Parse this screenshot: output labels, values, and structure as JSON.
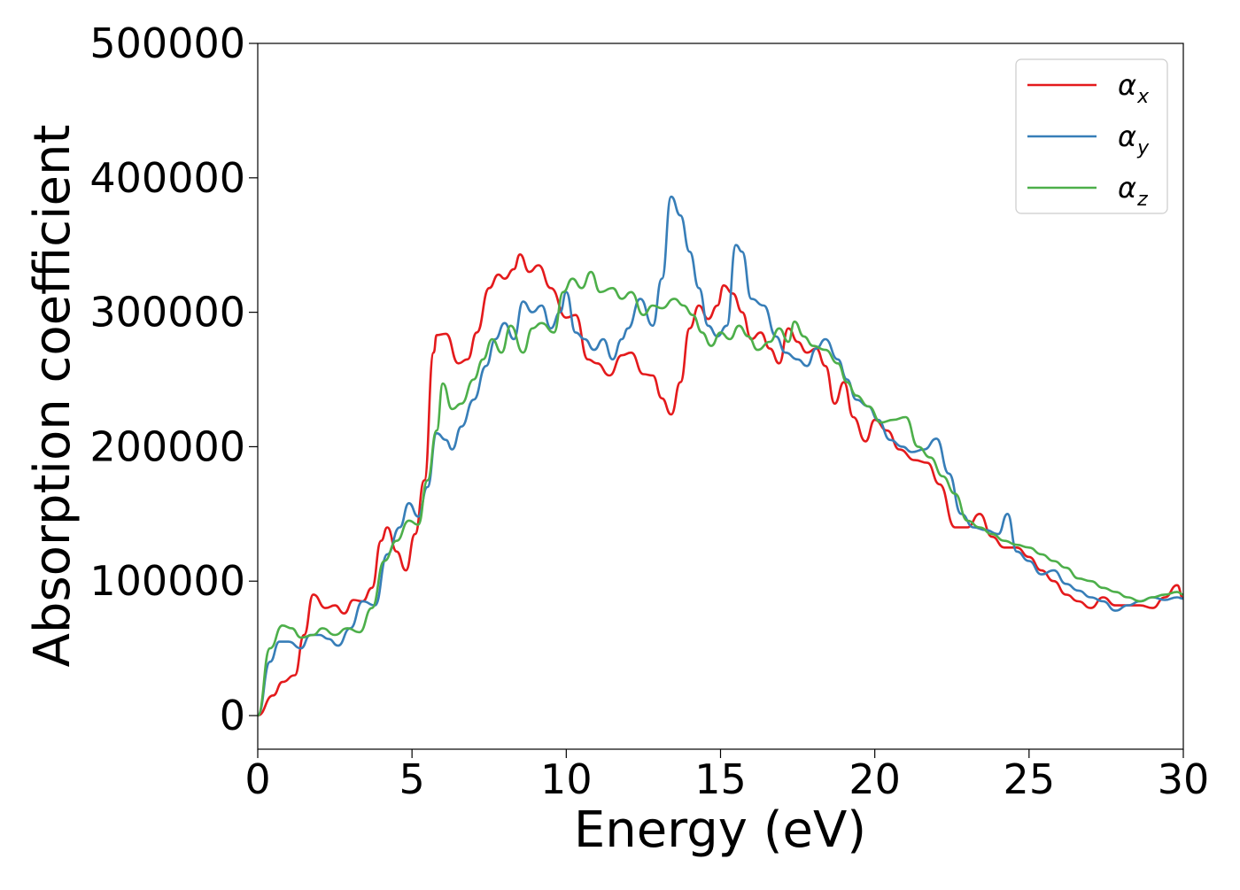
{
  "chart_data": {
    "type": "line",
    "title": "",
    "xlabel": "Energy (eV)",
    "ylabel": "Absorption coefficient",
    "xlim": [
      0,
      30
    ],
    "ylim": [
      -25000,
      500000
    ],
    "xticks": [
      "0",
      "5",
      "10",
      "15",
      "20",
      "25",
      "30"
    ],
    "yticks": [
      "0",
      "100000",
      "200000",
      "300000",
      "400000",
      "500000"
    ],
    "grid": false,
    "legend_position": "top-right",
    "series": [
      {
        "name": "α",
        "subscript": "x",
        "color": "#e41a1c",
        "points": [
          [
            0,
            0
          ],
          [
            0.5,
            15000
          ],
          [
            0.8,
            25000
          ],
          [
            1.2,
            30000
          ],
          [
            1.5,
            60000
          ],
          [
            1.8,
            90000
          ],
          [
            2.2,
            80000
          ],
          [
            2.5,
            82000
          ],
          [
            2.8,
            76000
          ],
          [
            3.1,
            86000
          ],
          [
            3.4,
            85000
          ],
          [
            3.7,
            95000
          ],
          [
            4.0,
            130000
          ],
          [
            4.2,
            140000
          ],
          [
            4.5,
            122000
          ],
          [
            4.8,
            108000
          ],
          [
            5.1,
            135000
          ],
          [
            5.4,
            175000
          ],
          [
            5.7,
            270000
          ],
          [
            5.8,
            283000
          ],
          [
            6.1,
            284000
          ],
          [
            6.5,
            262000
          ],
          [
            6.8,
            265000
          ],
          [
            7.1,
            285000
          ],
          [
            7.5,
            318000
          ],
          [
            7.8,
            328000
          ],
          [
            8.0,
            325000
          ],
          [
            8.3,
            332000
          ],
          [
            8.5,
            343000
          ],
          [
            8.8,
            330000
          ],
          [
            9.1,
            335000
          ],
          [
            9.5,
            318000
          ],
          [
            10.0,
            296000
          ],
          [
            10.3,
            298000
          ],
          [
            10.7,
            265000
          ],
          [
            11.0,
            262000
          ],
          [
            11.4,
            253000
          ],
          [
            11.8,
            268000
          ],
          [
            12.1,
            270000
          ],
          [
            12.5,
            254000
          ],
          [
            12.8,
            253000
          ],
          [
            13.1,
            236000
          ],
          [
            13.4,
            224000
          ],
          [
            13.7,
            248000
          ],
          [
            14.0,
            288000
          ],
          [
            14.3,
            305000
          ],
          [
            14.6,
            295000
          ],
          [
            14.9,
            305000
          ],
          [
            15.1,
            320000
          ],
          [
            15.4,
            314000
          ],
          [
            15.7,
            300000
          ],
          [
            16.0,
            280000
          ],
          [
            16.3,
            285000
          ],
          [
            16.6,
            273000
          ],
          [
            16.9,
            262000
          ],
          [
            17.2,
            288000
          ],
          [
            17.5,
            278000
          ],
          [
            17.8,
            270000
          ],
          [
            18.1,
            273000
          ],
          [
            18.4,
            260000
          ],
          [
            18.7,
            232000
          ],
          [
            19.0,
            248000
          ],
          [
            19.3,
            222000
          ],
          [
            19.7,
            204000
          ],
          [
            20.0,
            220000
          ],
          [
            20.4,
            212000
          ],
          [
            20.8,
            198000
          ],
          [
            21.3,
            190000
          ],
          [
            21.7,
            188000
          ],
          [
            22.1,
            172000
          ],
          [
            22.6,
            140000
          ],
          [
            23.0,
            140000
          ],
          [
            23.4,
            150000
          ],
          [
            23.8,
            133000
          ],
          [
            24.2,
            125000
          ],
          [
            24.6,
            125000
          ],
          [
            25.0,
            118000
          ],
          [
            25.4,
            108000
          ],
          [
            25.8,
            100000
          ],
          [
            26.2,
            90000
          ],
          [
            26.6,
            85000
          ],
          [
            27.0,
            80000
          ],
          [
            27.4,
            88000
          ],
          [
            27.8,
            82000
          ],
          [
            28.2,
            82000
          ],
          [
            28.6,
            82000
          ],
          [
            29.0,
            80000
          ],
          [
            29.4,
            88000
          ],
          [
            29.8,
            97000
          ],
          [
            30.0,
            87000
          ]
        ]
      },
      {
        "name": "α",
        "subscript": "y",
        "color": "#377eb8",
        "points": [
          [
            0,
            0
          ],
          [
            0.4,
            40000
          ],
          [
            0.7,
            55000
          ],
          [
            1.0,
            55000
          ],
          [
            1.4,
            50000
          ],
          [
            1.7,
            60000
          ],
          [
            2.0,
            60000
          ],
          [
            2.3,
            57000
          ],
          [
            2.6,
            52000
          ],
          [
            3.0,
            65000
          ],
          [
            3.4,
            85000
          ],
          [
            3.8,
            82000
          ],
          [
            4.2,
            120000
          ],
          [
            4.6,
            140000
          ],
          [
            4.9,
            158000
          ],
          [
            5.2,
            148000
          ],
          [
            5.5,
            170000
          ],
          [
            5.8,
            210000
          ],
          [
            6.1,
            205000
          ],
          [
            6.3,
            198000
          ],
          [
            6.6,
            215000
          ],
          [
            7.0,
            235000
          ],
          [
            7.4,
            260000
          ],
          [
            7.7,
            280000
          ],
          [
            8.0,
            292000
          ],
          [
            8.3,
            280000
          ],
          [
            8.6,
            308000
          ],
          [
            8.9,
            300000
          ],
          [
            9.2,
            305000
          ],
          [
            9.5,
            288000
          ],
          [
            9.8,
            300000
          ],
          [
            10.0,
            315000
          ],
          [
            10.3,
            285000
          ],
          [
            10.6,
            280000
          ],
          [
            10.9,
            272000
          ],
          [
            11.2,
            280000
          ],
          [
            11.5,
            265000
          ],
          [
            11.8,
            280000
          ],
          [
            12.0,
            288000
          ],
          [
            12.4,
            310000
          ],
          [
            12.8,
            290000
          ],
          [
            13.1,
            325000
          ],
          [
            13.4,
            386000
          ],
          [
            13.7,
            372000
          ],
          [
            14.0,
            345000
          ],
          [
            14.3,
            318000
          ],
          [
            14.6,
            290000
          ],
          [
            14.9,
            282000
          ],
          [
            15.2,
            290000
          ],
          [
            15.5,
            350000
          ],
          [
            15.7,
            345000
          ],
          [
            16.0,
            310000
          ],
          [
            16.4,
            305000
          ],
          [
            16.8,
            282000
          ],
          [
            17.1,
            270000
          ],
          [
            17.5,
            265000
          ],
          [
            17.8,
            260000
          ],
          [
            18.1,
            273000
          ],
          [
            18.4,
            280000
          ],
          [
            18.8,
            265000
          ],
          [
            19.1,
            250000
          ],
          [
            19.4,
            235000
          ],
          [
            19.8,
            230000
          ],
          [
            20.1,
            220000
          ],
          [
            20.5,
            205000
          ],
          [
            20.9,
            200000
          ],
          [
            21.2,
            196000
          ],
          [
            21.6,
            198000
          ],
          [
            22.0,
            206000
          ],
          [
            22.4,
            180000
          ],
          [
            22.8,
            150000
          ],
          [
            23.2,
            140000
          ],
          [
            23.6,
            138000
          ],
          [
            24.0,
            135000
          ],
          [
            24.3,
            150000
          ],
          [
            24.6,
            122000
          ],
          [
            25.0,
            115000
          ],
          [
            25.4,
            105000
          ],
          [
            25.8,
            108000
          ],
          [
            26.2,
            98000
          ],
          [
            26.6,
            93000
          ],
          [
            27.0,
            88000
          ],
          [
            27.4,
            85000
          ],
          [
            27.8,
            78000
          ],
          [
            28.2,
            82000
          ],
          [
            28.6,
            85000
          ],
          [
            29.0,
            88000
          ],
          [
            29.4,
            86000
          ],
          [
            29.8,
            88000
          ],
          [
            30.0,
            87000
          ]
        ]
      },
      {
        "name": "α",
        "subscript": "z",
        "color": "#4daf4a",
        "points": [
          [
            0,
            0
          ],
          [
            0.4,
            50000
          ],
          [
            0.8,
            67000
          ],
          [
            1.1,
            65000
          ],
          [
            1.4,
            58000
          ],
          [
            1.8,
            60000
          ],
          [
            2.1,
            65000
          ],
          [
            2.5,
            60000
          ],
          [
            2.9,
            65000
          ],
          [
            3.3,
            62000
          ],
          [
            3.7,
            80000
          ],
          [
            4.1,
            115000
          ],
          [
            4.5,
            130000
          ],
          [
            4.9,
            145000
          ],
          [
            5.2,
            142000
          ],
          [
            5.5,
            175000
          ],
          [
            5.8,
            212000
          ],
          [
            6.0,
            247000
          ],
          [
            6.3,
            228000
          ],
          [
            6.6,
            232000
          ],
          [
            7.0,
            250000
          ],
          [
            7.3,
            265000
          ],
          [
            7.6,
            280000
          ],
          [
            7.9,
            270000
          ],
          [
            8.2,
            290000
          ],
          [
            8.6,
            270000
          ],
          [
            8.9,
            288000
          ],
          [
            9.2,
            292000
          ],
          [
            9.6,
            285000
          ],
          [
            9.9,
            315000
          ],
          [
            10.2,
            325000
          ],
          [
            10.5,
            318000
          ],
          [
            10.8,
            330000
          ],
          [
            11.1,
            315000
          ],
          [
            11.5,
            318000
          ],
          [
            11.8,
            310000
          ],
          [
            12.1,
            315000
          ],
          [
            12.5,
            298000
          ],
          [
            12.8,
            305000
          ],
          [
            13.1,
            303000
          ],
          [
            13.5,
            310000
          ],
          [
            13.8,
            305000
          ],
          [
            14.1,
            298000
          ],
          [
            14.4,
            285000
          ],
          [
            14.7,
            275000
          ],
          [
            15.0,
            285000
          ],
          [
            15.3,
            280000
          ],
          [
            15.6,
            290000
          ],
          [
            15.9,
            282000
          ],
          [
            16.2,
            272000
          ],
          [
            16.6,
            278000
          ],
          [
            16.9,
            288000
          ],
          [
            17.2,
            278000
          ],
          [
            17.4,
            293000
          ],
          [
            17.7,
            282000
          ],
          [
            18.0,
            275000
          ],
          [
            18.4,
            272000
          ],
          [
            18.8,
            262000
          ],
          [
            19.1,
            248000
          ],
          [
            19.4,
            238000
          ],
          [
            19.8,
            230000
          ],
          [
            20.2,
            218000
          ],
          [
            20.6,
            220000
          ],
          [
            21.0,
            222000
          ],
          [
            21.4,
            200000
          ],
          [
            21.8,
            192000
          ],
          [
            22.2,
            178000
          ],
          [
            22.6,
            165000
          ],
          [
            23.0,
            145000
          ],
          [
            23.4,
            140000
          ],
          [
            23.8,
            135000
          ],
          [
            24.2,
            130000
          ],
          [
            24.6,
            127000
          ],
          [
            25.0,
            125000
          ],
          [
            25.4,
            120000
          ],
          [
            25.8,
            115000
          ],
          [
            26.2,
            110000
          ],
          [
            26.6,
            102000
          ],
          [
            27.0,
            100000
          ],
          [
            27.4,
            95000
          ],
          [
            27.8,
            92000
          ],
          [
            28.2,
            88000
          ],
          [
            28.6,
            85000
          ],
          [
            29.0,
            88000
          ],
          [
            29.4,
            90000
          ],
          [
            29.8,
            92000
          ],
          [
            30.0,
            90000
          ]
        ]
      }
    ]
  }
}
